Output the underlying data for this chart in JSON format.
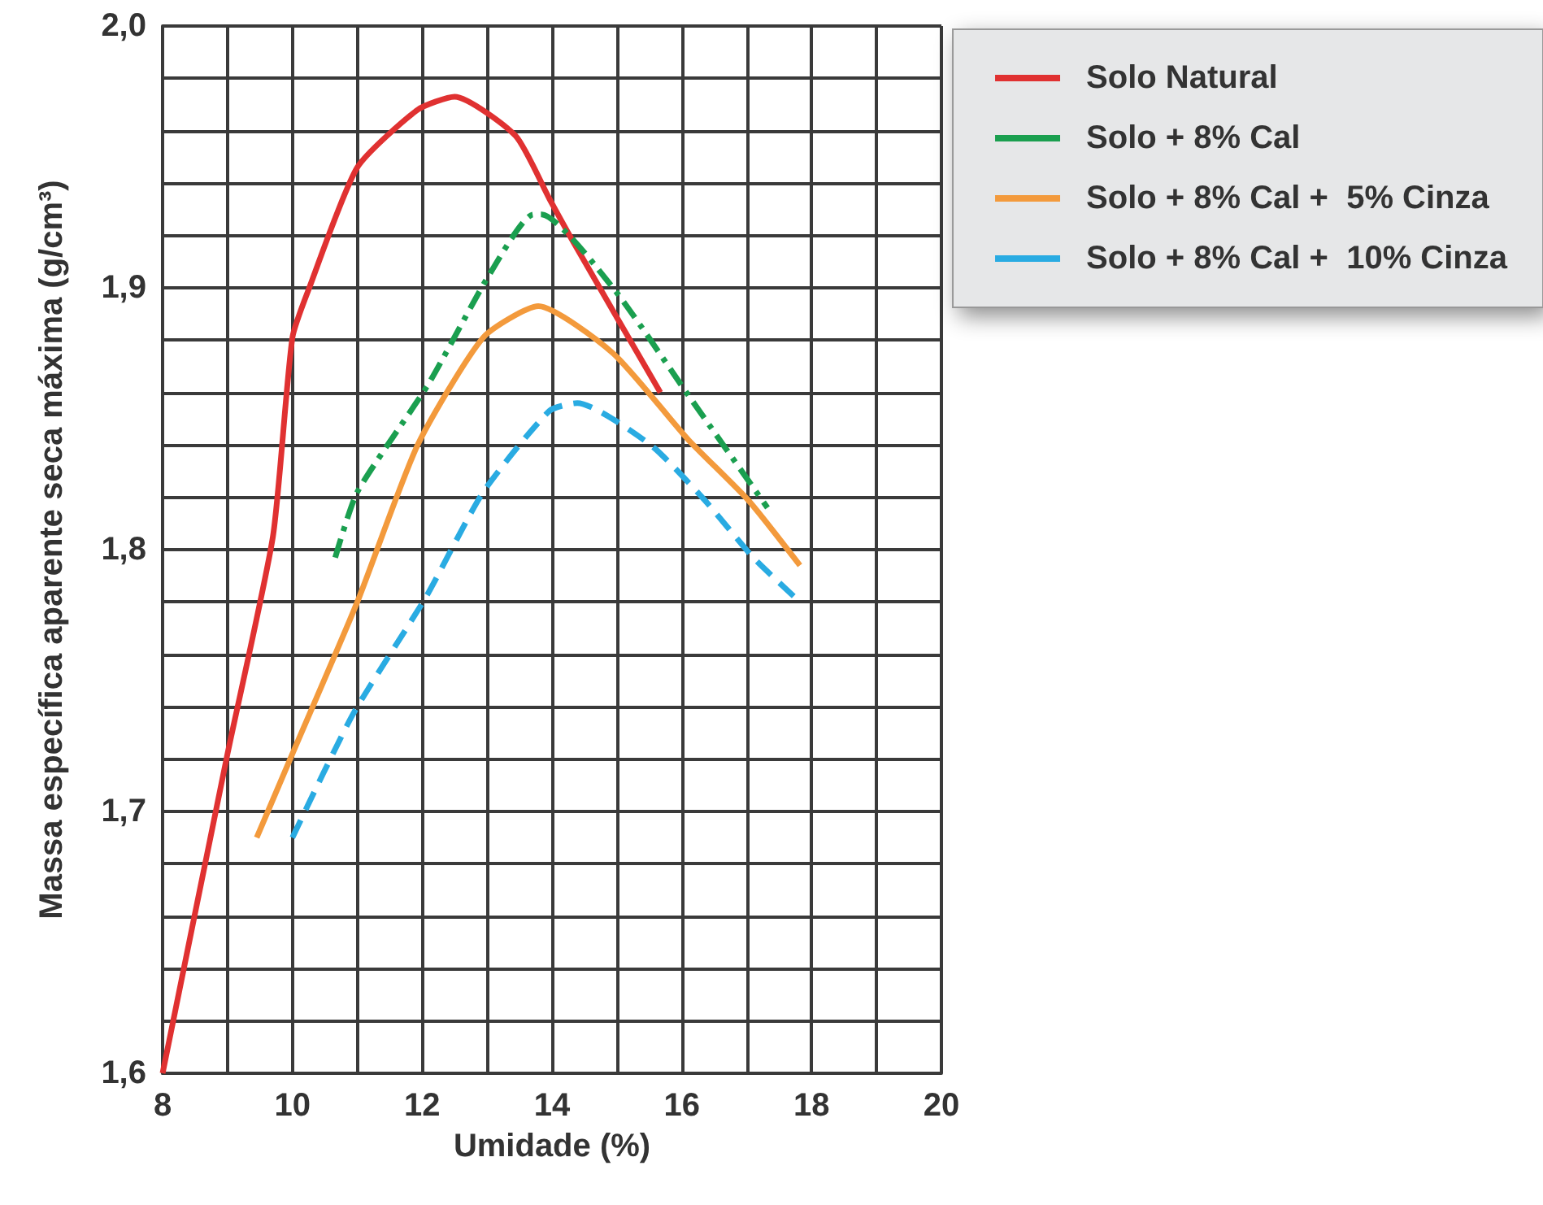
{
  "chart_data": {
    "type": "line",
    "xlabel": "Umidade (%)",
    "ylabel": "Massa específica aparente seca máxima (g/cm³)",
    "xlim": [
      8,
      20
    ],
    "ylim": [
      1.6,
      2.0
    ],
    "xticks": [
      8,
      {
        "value": 9,
        "label": null
      },
      10,
      {
        "value": 11,
        "label": null
      },
      12,
      {
        "value": 13,
        "label": null
      },
      14,
      {
        "value": 15,
        "label": null
      },
      16,
      {
        "value": 17,
        "label": null
      },
      18,
      {
        "value": 19,
        "label": null
      },
      20
    ],
    "yticks": [
      {
        "value": 1.6,
        "label": "1,6"
      },
      {
        "value": 1.62,
        "label": null
      },
      {
        "value": 1.64,
        "label": null
      },
      {
        "value": 1.66,
        "label": null
      },
      {
        "value": 1.68,
        "label": null
      },
      {
        "value": 1.7,
        "label": "1,7"
      },
      {
        "value": 1.72,
        "label": null
      },
      {
        "value": 1.74,
        "label": null
      },
      {
        "value": 1.76,
        "label": null
      },
      {
        "value": 1.78,
        "label": null
      },
      {
        "value": 1.8,
        "label": "1,8"
      },
      {
        "value": 1.82,
        "label": null
      },
      {
        "value": 1.84,
        "label": null
      },
      {
        "value": 1.86,
        "label": null
      },
      {
        "value": 1.88,
        "label": null
      },
      {
        "value": 1.9,
        "label": "1,9"
      },
      {
        "value": 1.92,
        "label": null
      },
      {
        "value": 1.94,
        "label": null
      },
      {
        "value": 1.96,
        "label": null
      },
      {
        "value": 1.98,
        "label": null
      },
      {
        "value": 2.0,
        "label": "2,0"
      }
    ],
    "grid": true,
    "legend": "top right",
    "marker": "none",
    "series": [
      {
        "name": "Solo Natural",
        "color": "#e03131",
        "line_style": "solid",
        "x": [
          8,
          9,
          9.7,
          10,
          10.26,
          11,
          11.93,
          12.5,
          13.44,
          13.96,
          14.34,
          15.67
        ],
        "values": [
          1.6,
          1.722,
          1.805,
          1.881,
          1.9,
          1.946,
          1.968,
          1.973,
          1.958,
          1.934,
          1.917,
          1.86
        ]
      },
      {
        "name": "Solo + 8% Cal",
        "color": "#1a9f4f",
        "line_style": "dashdot",
        "x": [
          10.66,
          11,
          12.09,
          13.01,
          13.71,
          13.84,
          14.94,
          16.1,
          17.32
        ],
        "values": [
          1.797,
          1.822,
          1.863,
          1.904,
          1.928,
          1.928,
          1.9,
          1.859,
          1.816
        ]
      },
      {
        "name": "Solo + 8% Cal +  5% Cinza",
        "color": "#f39a3c",
        "line_style": "solid",
        "x": [
          9.45,
          10,
          11,
          11.93,
          12.94,
          13.79,
          14.94,
          16.1,
          17.02,
          17.82
        ],
        "values": [
          1.69,
          1.722,
          1.78,
          1.84,
          1.881,
          1.893,
          1.875,
          1.842,
          1.819,
          1.794
        ]
      },
      {
        "name": "Solo + 8% Cal +  10% Cinza",
        "color": "#29abe2",
        "line_style": "dashed",
        "x": [
          10,
          10.93,
          12.06,
          12.94,
          13.96,
          14.39,
          15.52,
          16.35,
          17.1,
          17.82
        ],
        "values": [
          1.69,
          1.737,
          1.782,
          1.822,
          1.853,
          1.856,
          1.84,
          1.819,
          1.797,
          1.78
        ]
      }
    ]
  }
}
